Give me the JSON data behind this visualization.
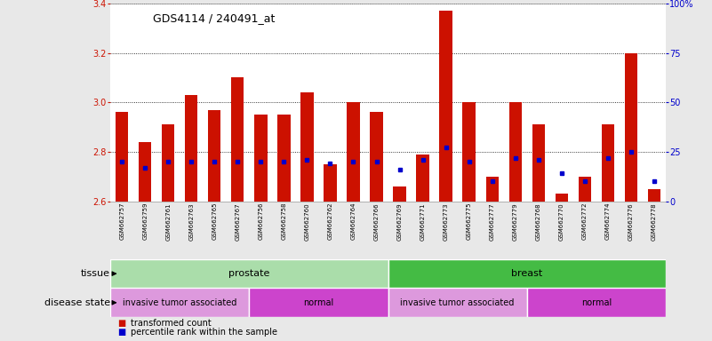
{
  "title": "GDS4114 / 240491_at",
  "samples": [
    "GSM662757",
    "GSM662759",
    "GSM662761",
    "GSM662763",
    "GSM662765",
    "GSM662767",
    "GSM662756",
    "GSM662758",
    "GSM662760",
    "GSM662762",
    "GSM662764",
    "GSM662766",
    "GSM662769",
    "GSM662771",
    "GSM662773",
    "GSM662775",
    "GSM662777",
    "GSM662779",
    "GSM662768",
    "GSM662770",
    "GSM662772",
    "GSM662774",
    "GSM662776",
    "GSM662778"
  ],
  "transformed_count": [
    2.96,
    2.84,
    2.91,
    3.03,
    2.97,
    3.1,
    2.95,
    2.95,
    3.04,
    2.75,
    3.0,
    2.96,
    2.66,
    2.79,
    3.37,
    3.0,
    2.7,
    3.0,
    2.91,
    2.63,
    2.7,
    2.91,
    3.2,
    2.65
  ],
  "percentile_rank": [
    20,
    17,
    20,
    20,
    20,
    20,
    20,
    20,
    21,
    19,
    20,
    20,
    16,
    21,
    27,
    20,
    10,
    22,
    21,
    14,
    10,
    22,
    25,
    10
  ],
  "bar_color": "#cc1100",
  "dot_color": "#0000cc",
  "ylim_left": [
    2.6,
    3.4
  ],
  "ylim_right": [
    0,
    100
  ],
  "yticks_left": [
    2.6,
    2.8,
    3.0,
    3.2,
    3.4
  ],
  "yticks_right": [
    0,
    25,
    50,
    75,
    100
  ],
  "ytick_labels_right": [
    "0",
    "25",
    "50",
    "75",
    "100%"
  ],
  "tissue_groups": [
    {
      "label": "prostate",
      "start": 0,
      "end": 12,
      "color": "#aaddaa"
    },
    {
      "label": "breast",
      "start": 12,
      "end": 24,
      "color": "#44bb44"
    }
  ],
  "disease_groups": [
    {
      "label": "invasive tumor associated",
      "start": 0,
      "end": 6,
      "color": "#dd99dd"
    },
    {
      "label": "normal",
      "start": 6,
      "end": 12,
      "color": "#cc44cc"
    },
    {
      "label": "invasive tumor associated",
      "start": 12,
      "end": 18,
      "color": "#dd99dd"
    },
    {
      "label": "normal",
      "start": 18,
      "end": 24,
      "color": "#cc44cc"
    }
  ],
  "tissue_label": "tissue",
  "disease_label": "disease state",
  "legend_tc_label": "transformed count",
  "legend_pr_label": "percentile rank within the sample",
  "bg_color": "#e8e8e8",
  "plot_bg": "#ffffff",
  "font_color_left": "#cc1100",
  "font_color_right": "#0000cc"
}
